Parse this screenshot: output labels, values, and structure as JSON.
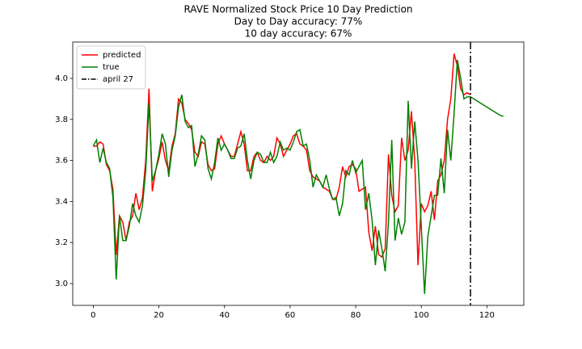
{
  "chart_data": {
    "type": "line",
    "title": "RAVE Normalized Stock Price 10 Day Prediction",
    "subtitle": [
      "Day to Day accuracy: 77%",
      "10 day accuracy: 67%"
    ],
    "x": [
      0,
      1,
      2,
      3,
      4,
      5,
      6,
      7,
      8,
      9,
      10,
      11,
      12,
      13,
      14,
      15,
      16,
      17,
      18,
      19,
      20,
      21,
      22,
      23,
      24,
      25,
      26,
      27,
      28,
      29,
      30,
      31,
      32,
      33,
      34,
      35,
      36,
      37,
      38,
      39,
      40,
      41,
      42,
      43,
      44,
      45,
      46,
      47,
      48,
      49,
      50,
      51,
      52,
      53,
      54,
      55,
      56,
      57,
      58,
      59,
      60,
      61,
      62,
      63,
      64,
      65,
      66,
      67,
      68,
      69,
      70,
      71,
      72,
      73,
      74,
      75,
      76,
      77,
      78,
      79,
      80,
      81,
      82,
      83,
      84,
      85,
      86,
      87,
      88,
      89,
      90,
      91,
      92,
      93,
      94,
      95,
      96,
      97,
      98,
      99,
      100,
      101,
      102,
      103,
      104,
      105,
      106,
      107,
      108,
      109,
      110,
      111,
      112,
      113,
      114,
      115,
      116,
      117,
      118,
      119,
      120,
      121,
      122,
      123,
      124,
      125
    ],
    "series": [
      {
        "name": "predicted",
        "color": "#ff0000",
        "values": [
          3.67,
          3.67,
          3.69,
          3.68,
          3.58,
          3.55,
          3.46,
          3.14,
          3.33,
          3.3,
          3.21,
          3.3,
          3.33,
          3.44,
          3.36,
          3.42,
          3.6,
          3.95,
          3.45,
          3.55,
          3.61,
          3.69,
          3.6,
          3.55,
          3.67,
          3.73,
          3.9,
          3.88,
          3.8,
          3.78,
          3.75,
          3.64,
          3.62,
          3.69,
          3.68,
          3.58,
          3.55,
          3.56,
          3.68,
          3.72,
          3.68,
          3.65,
          3.62,
          3.62,
          3.68,
          3.74,
          3.68,
          3.55,
          3.55,
          3.62,
          3.64,
          3.6,
          3.59,
          3.62,
          3.6,
          3.62,
          3.71,
          3.68,
          3.62,
          3.65,
          3.68,
          3.72,
          3.73,
          3.68,
          3.67,
          3.65,
          3.55,
          3.52,
          3.51,
          3.5,
          3.47,
          3.46,
          3.45,
          3.41,
          3.41,
          3.47,
          3.57,
          3.52,
          3.57,
          3.58,
          3.56,
          3.45,
          3.46,
          3.47,
          3.25,
          3.16,
          3.28,
          3.14,
          3.13,
          3.17,
          3.63,
          3.43,
          3.35,
          3.38,
          3.71,
          3.6,
          3.65,
          3.84,
          3.6,
          3.09,
          3.39,
          3.35,
          3.38,
          3.45,
          3.31,
          3.5,
          3.53,
          3.6,
          3.8,
          3.9,
          4.12,
          4.06,
          3.95,
          3.92,
          3.93,
          3.92,
          null,
          null,
          null,
          null,
          null,
          null,
          null,
          null,
          null,
          null
        ]
      },
      {
        "name": "true",
        "color": "#008000",
        "values": [
          3.67,
          3.7,
          3.59,
          3.66,
          3.59,
          3.56,
          3.42,
          3.02,
          3.33,
          3.21,
          3.21,
          3.28,
          3.39,
          3.33,
          3.3,
          3.38,
          3.55,
          3.88,
          3.5,
          3.55,
          3.63,
          3.73,
          3.68,
          3.52,
          3.65,
          3.72,
          3.86,
          3.92,
          3.79,
          3.76,
          3.77,
          3.57,
          3.63,
          3.72,
          3.7,
          3.56,
          3.51,
          3.59,
          3.71,
          3.65,
          3.68,
          3.65,
          3.61,
          3.61,
          3.66,
          3.67,
          3.73,
          3.6,
          3.51,
          3.6,
          3.64,
          3.63,
          3.59,
          3.59,
          3.64,
          3.59,
          3.62,
          3.69,
          3.65,
          3.66,
          3.65,
          3.69,
          3.74,
          3.75,
          3.67,
          3.68,
          3.6,
          3.47,
          3.53,
          3.5,
          3.47,
          3.53,
          3.46,
          3.41,
          3.42,
          3.33,
          3.39,
          3.55,
          3.53,
          3.6,
          3.54,
          3.57,
          3.6,
          3.36,
          3.44,
          3.31,
          3.09,
          3.26,
          3.17,
          3.06,
          3.3,
          3.7,
          3.21,
          3.32,
          3.24,
          3.3,
          3.89,
          3.56,
          3.79,
          3.6,
          3.28,
          2.95,
          3.23,
          3.33,
          3.43,
          3.43,
          3.61,
          3.44,
          3.75,
          3.6,
          3.83,
          4.09,
          4.0,
          3.9,
          3.91,
          3.91,
          3.9,
          3.89,
          3.88,
          3.87,
          3.86,
          3.85,
          3.84,
          3.83,
          3.82,
          3.815
        ]
      }
    ],
    "vlines": [
      {
        "name": "april 27",
        "x": 115,
        "color": "#000000"
      }
    ],
    "xlim": [
      -6.25,
      131.25
    ],
    "ylim": [
      2.894,
      4.177
    ],
    "xticks": [
      0,
      20,
      40,
      60,
      80,
      100,
      120
    ],
    "yticks": [
      {
        "value": 3,
        "label": "3.0"
      },
      {
        "value": 3.2,
        "label": "3.2"
      },
      {
        "value": 3.4,
        "label": "3.4"
      },
      {
        "value": 3.6,
        "label": "3.6"
      },
      {
        "value": 3.8,
        "label": "3.8"
      },
      {
        "value": 4,
        "label": "4.0"
      }
    ],
    "legend": "upper left",
    "grid": false
  }
}
